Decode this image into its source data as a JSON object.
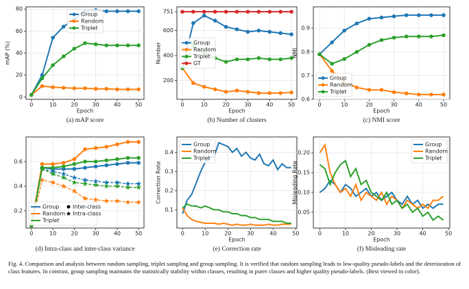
{
  "chart_data": [
    {
      "type": "line",
      "subtitle": "(a) mAP score",
      "xlabel": "Epoch",
      "ylabel": "mAP (%)",
      "grid": true,
      "markers": true,
      "legend": "upper center",
      "x": [
        0,
        5,
        10,
        15,
        20,
        25,
        30,
        35,
        40,
        45,
        50
      ],
      "xlim": [
        -2.5,
        52.5
      ],
      "xticks": [
        0,
        10,
        20,
        30,
        40,
        50
      ],
      "ylim": [
        -2,
        82
      ],
      "yticks": [
        0,
        20,
        40,
        60,
        80
      ],
      "series": [
        {
          "name": "Group",
          "color": "#1f77b4",
          "values": [
            2,
            20,
            54,
            64,
            71,
            78,
            79,
            78,
            78,
            78,
            78
          ]
        },
        {
          "name": "Random",
          "color": "#ff7f0e",
          "values": [
            2,
            10,
            9,
            8.5,
            8,
            8,
            7.5,
            7.5,
            7,
            7,
            7
          ]
        },
        {
          "name": "Triplet",
          "color": "#2ca02c",
          "values": [
            2,
            17,
            29,
            37,
            44,
            49,
            48,
            47,
            47,
            47,
            47
          ]
        }
      ]
    },
    {
      "type": "line",
      "subtitle": "(b) Number of clusters",
      "xlabel": "Epoch",
      "ylabel": "Number",
      "grid": true,
      "markers": true,
      "legend": "center left",
      "x": [
        0,
        5,
        10,
        15,
        20,
        25,
        30,
        35,
        40,
        45,
        50
      ],
      "xlim": [
        -2.5,
        52.5
      ],
      "xticks": [
        0,
        10,
        20,
        30,
        40,
        50
      ],
      "ylim": [
        50,
        790
      ],
      "yticks": [
        200,
        400,
        600,
        751
      ],
      "series": [
        {
          "name": "Group",
          "color": "#1f77b4",
          "values": [
            300,
            660,
            720,
            680,
            630,
            610,
            590,
            600,
            590,
            580,
            570
          ]
        },
        {
          "name": "Random",
          "color": "#ff7f0e",
          "values": [
            300,
            180,
            150,
            130,
            110,
            120,
            110,
            100,
            100,
            100,
            105
          ]
        },
        {
          "name": "Triplet",
          "color": "#2ca02c",
          "values": [
            300,
            480,
            420,
            380,
            350,
            370,
            370,
            380,
            370,
            370,
            380
          ]
        },
        {
          "name": "GT",
          "color": "#d62728",
          "values": [
            751,
            751,
            751,
            751,
            751,
            751,
            751,
            751,
            751,
            751,
            751
          ]
        }
      ]
    },
    {
      "type": "line",
      "subtitle": "(c) NMI score",
      "xlabel": "Epoch",
      "ylabel": "NMI",
      "grid": true,
      "markers": true,
      "legend": "lower left",
      "x": [
        0,
        5,
        10,
        15,
        20,
        25,
        30,
        35,
        40,
        45,
        50
      ],
      "xlim": [
        -2.5,
        52.5
      ],
      "xticks": [
        0,
        10,
        20,
        30,
        40,
        50
      ],
      "ylim": [
        0.6,
        0.99
      ],
      "yticks": [
        0.6,
        0.7,
        0.8,
        0.9
      ],
      "series": [
        {
          "name": "Group",
          "color": "#1f77b4",
          "values": [
            0.79,
            0.84,
            0.89,
            0.92,
            0.94,
            0.945,
            0.95,
            0.955,
            0.955,
            0.955,
            0.955
          ]
        },
        {
          "name": "Random",
          "color": "#ff7f0e",
          "values": [
            0.79,
            0.72,
            0.67,
            0.65,
            0.64,
            0.64,
            0.63,
            0.625,
            0.62,
            0.62,
            0.62
          ]
        },
        {
          "name": "Triplet",
          "color": "#2ca02c",
          "values": [
            0.79,
            0.75,
            0.77,
            0.8,
            0.83,
            0.85,
            0.86,
            0.865,
            0.865,
            0.865,
            0.87
          ]
        }
      ]
    },
    {
      "type": "variance",
      "subtitle": "(d) Intra-class and inter-class variance",
      "grid": true,
      "legend": "lower left",
      "x": [
        0,
        5,
        10,
        15,
        20,
        25,
        30,
        35,
        40,
        45,
        50
      ],
      "xlim": [
        -2.5,
        52.5
      ],
      "xticks": [
        0,
        10,
        20,
        30,
        40,
        50
      ],
      "ylim": [
        0.06,
        0.8
      ],
      "yticks": [
        0.2,
        0.4,
        0.6
      ],
      "marker_legend": [
        "Inter-class",
        "Intra-class"
      ],
      "series": [
        {
          "name": "Group",
          "color": "#1f77b4",
          "inter_values": [
            0.08,
            0.55,
            0.54,
            0.54,
            0.54,
            0.55,
            0.56,
            0.57,
            0.58,
            0.59,
            0.59
          ],
          "intra_values": [
            0.08,
            0.54,
            0.52,
            0.5,
            0.47,
            0.45,
            0.44,
            0.43,
            0.43,
            0.42,
            0.42
          ]
        },
        {
          "name": "Random",
          "color": "#ff7f0e",
          "inter_values": [
            0.08,
            0.58,
            0.58,
            0.59,
            0.62,
            0.7,
            0.71,
            0.72,
            0.74,
            0.76,
            0.76
          ],
          "intra_values": [
            0.08,
            0.45,
            0.43,
            0.4,
            0.36,
            0.3,
            0.29,
            0.28,
            0.28,
            0.27,
            0.27
          ]
        },
        {
          "name": "Triplet",
          "color": "#2ca02c",
          "inter_values": [
            0.08,
            0.55,
            0.55,
            0.56,
            0.58,
            0.6,
            0.6,
            0.61,
            0.62,
            0.63,
            0.63
          ],
          "intra_values": [
            0.08,
            0.54,
            0.5,
            0.47,
            0.43,
            0.42,
            0.41,
            0.4,
            0.4,
            0.39,
            0.39
          ]
        }
      ]
    },
    {
      "type": "line",
      "subtitle": "(e) Correction rate",
      "xlabel": "Epoch",
      "ylabel": "Correction Rate",
      "grid": true,
      "markers": false,
      "legend": "upper left",
      "x": [
        0,
        2,
        4,
        6,
        8,
        10,
        12,
        14,
        16,
        18,
        20,
        22,
        24,
        26,
        28,
        30,
        32,
        34,
        36,
        38,
        40,
        42,
        44,
        46,
        48
      ],
      "xlim": [
        -2.5,
        50.5
      ],
      "xticks": [
        0,
        10,
        20,
        30,
        40,
        50
      ],
      "ylim": [
        0.005,
        0.48
      ],
      "yticks": [
        0.1,
        0.2,
        0.3,
        0.4
      ],
      "series": [
        {
          "name": "Group",
          "color": "#1f77b4",
          "values": [
            0.08,
            0.15,
            0.18,
            0.24,
            0.3,
            0.35,
            0.37,
            0.38,
            0.45,
            0.44,
            0.43,
            0.4,
            0.42,
            0.38,
            0.4,
            0.37,
            0.36,
            0.39,
            0.34,
            0.33,
            0.36,
            0.31,
            0.34,
            0.32,
            0.32
          ]
        },
        {
          "name": "Random",
          "color": "#ff7f0e",
          "values": [
            0.11,
            0.07,
            0.05,
            0.04,
            0.035,
            0.03,
            0.03,
            0.03,
            0.025,
            0.03,
            0.025,
            0.02,
            0.025,
            0.02,
            0.02,
            0.025,
            0.02,
            0.02,
            0.02,
            0.025,
            0.02,
            0.02,
            0.025,
            0.025,
            0.025
          ]
        },
        {
          "name": "Triplet",
          "color": "#2ca02c",
          "values": [
            0.11,
            0.13,
            0.12,
            0.12,
            0.11,
            0.12,
            0.11,
            0.1,
            0.1,
            0.09,
            0.09,
            0.08,
            0.08,
            0.07,
            0.07,
            0.06,
            0.06,
            0.05,
            0.05,
            0.05,
            0.04,
            0.04,
            0.04,
            0.03,
            0.03
          ]
        }
      ]
    },
    {
      "type": "line",
      "subtitle": "(f) Misleading rate",
      "xlabel": "Epoch",
      "ylabel": "Misleading Rate",
      "grid": true,
      "markers": false,
      "legend": "upper right",
      "x": [
        0,
        2,
        4,
        6,
        8,
        10,
        12,
        14,
        16,
        18,
        20,
        22,
        24,
        26,
        28,
        30,
        32,
        34,
        36,
        38,
        40,
        42,
        44,
        46,
        48
      ],
      "xlim": [
        -2.5,
        50.5
      ],
      "xticks": [
        0,
        10,
        20,
        30,
        40,
        50
      ],
      "ylim": [
        0.01,
        0.24
      ],
      "yticks": [
        0.05,
        {
          "value": 0.1,
          "label": "0.10"
        },
        0.15,
        {
          "value": 0.2,
          "label": "0.20"
        }
      ],
      "series": [
        {
          "name": "Group",
          "color": "#1f77b4",
          "values": [
            0.1,
            0.11,
            0.13,
            0.12,
            0.1,
            0.12,
            0.11,
            0.09,
            0.1,
            0.11,
            0.09,
            0.1,
            0.08,
            0.09,
            0.1,
            0.08,
            0.07,
            0.09,
            0.07,
            0.08,
            0.06,
            0.07,
            0.06,
            0.07,
            0.07
          ]
        },
        {
          "name": "Random",
          "color": "#ff7f0e",
          "values": [
            0.2,
            0.22,
            0.15,
            0.12,
            0.1,
            0.11,
            0.09,
            0.12,
            0.08,
            0.1,
            0.09,
            0.08,
            0.1,
            0.07,
            0.09,
            0.08,
            0.06,
            0.08,
            0.07,
            0.06,
            0.07,
            0.06,
            0.08,
            0.08,
            0.09
          ]
        },
        {
          "name": "Triplet",
          "color": "#2ca02c",
          "values": [
            0.17,
            0.16,
            0.12,
            0.15,
            0.17,
            0.18,
            0.14,
            0.16,
            0.12,
            0.13,
            0.1,
            0.09,
            0.08,
            0.1,
            0.07,
            0.08,
            0.06,
            0.07,
            0.05,
            0.06,
            0.04,
            0.05,
            0.03,
            0.04,
            0.03
          ]
        }
      ]
    }
  ],
  "caption": "Fig. 4.   Comparison and analysis between random sampling, triplet sampling and group sampling. It is verified that random sampling leads to low-quality pseudo-labels and the deterioration of class features. In contrast, group sampling maintains the statistically stability within classes, resulting in purer classes and higher quality pseudo-labels. (Best viewed in color)."
}
